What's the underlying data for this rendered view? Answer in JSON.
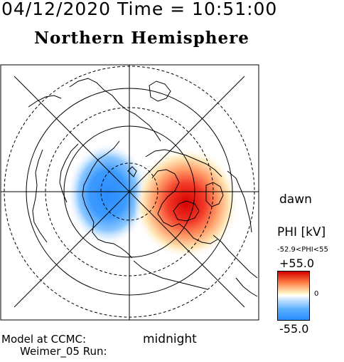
{
  "header": {
    "time_line": "04/12/2020 Time = 10:51:00",
    "hemisphere": "Northern Hemisphere"
  },
  "labels": {
    "dawn": "dawn",
    "midnight": "midnight",
    "model_line": "Model at CCMC:",
    "run_line": "Weimer_05 Run:"
  },
  "colorbar": {
    "title": "PHI [kV]",
    "range_text": "-52.9<PHI<55",
    "max_label": "+55.0",
    "zero_label": "0",
    "min_label": "-55.0",
    "colors": {
      "positive": "#d40000",
      "negative": "#2a8cff",
      "neutral": "#ffffff"
    }
  },
  "potential": {
    "max_kv": 55.0,
    "min_kv": -52.9
  }
}
